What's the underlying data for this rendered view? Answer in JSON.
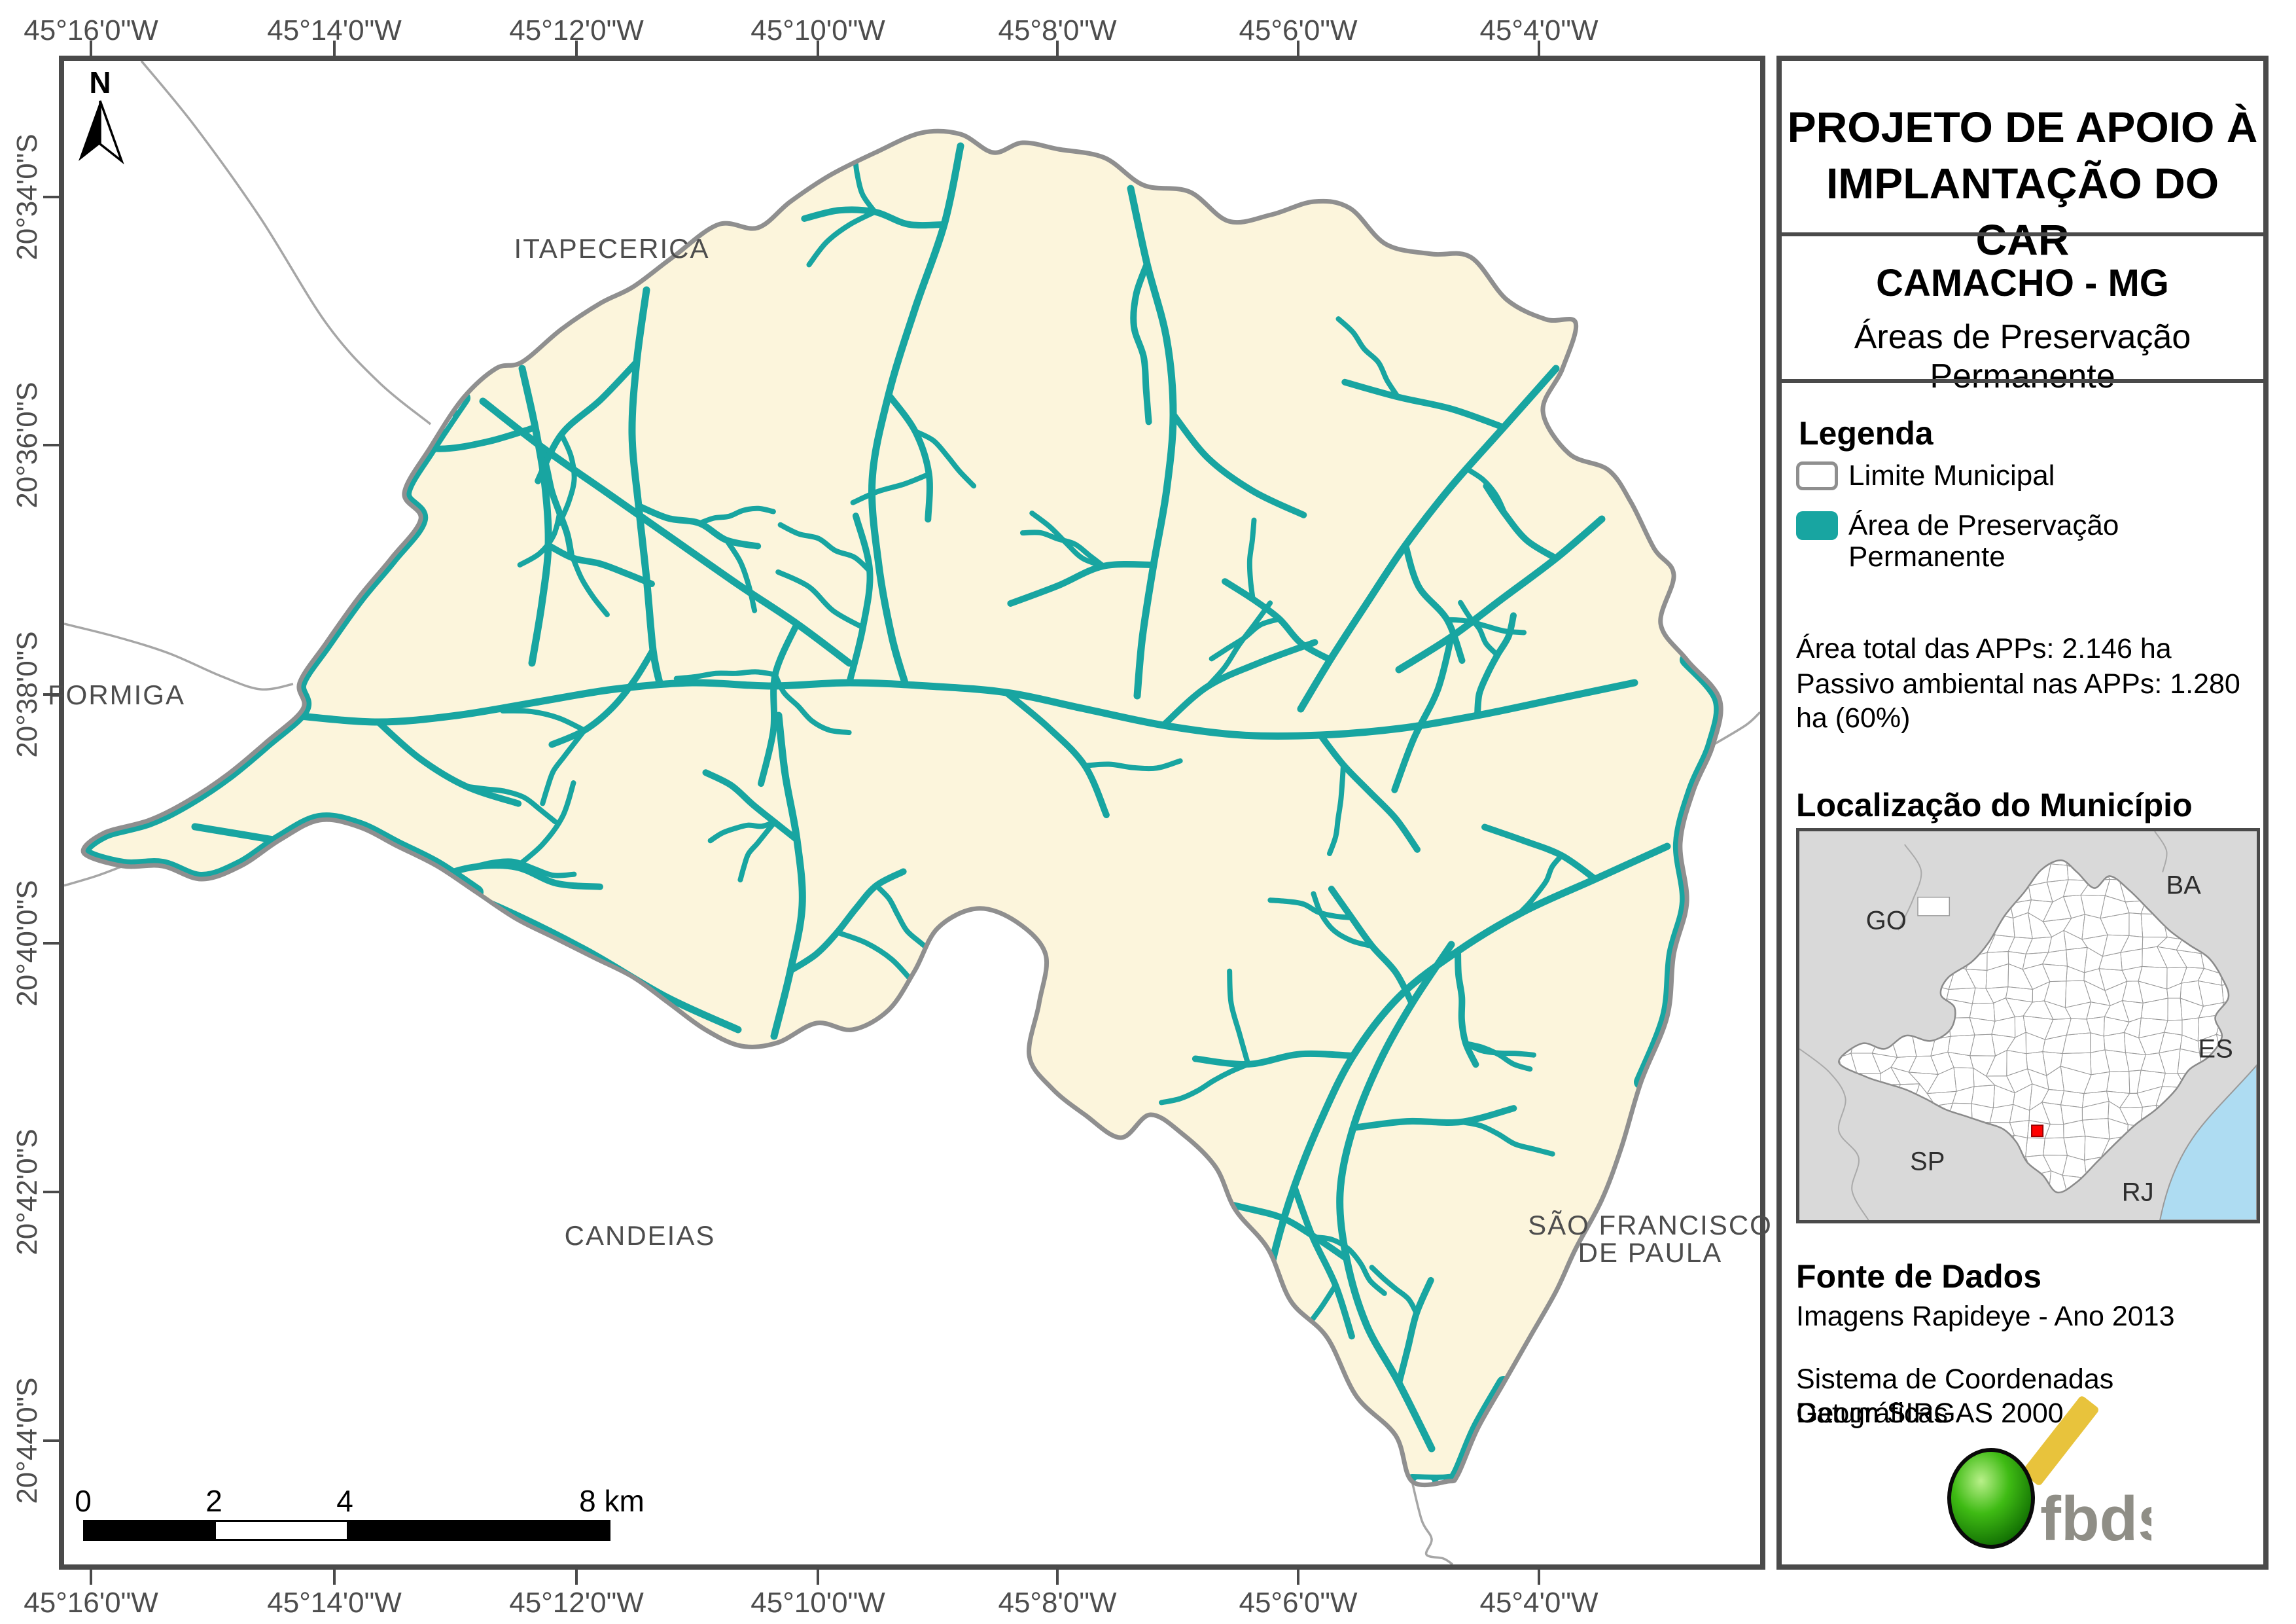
{
  "header": {
    "title_line1": "PROJETO DE APOIO À",
    "title_line2": "IMPLANTAÇÃO DO CAR",
    "municipality": "CAMACHO - MG",
    "subtitle": "Áreas de Preservação Permanente"
  },
  "legend": {
    "heading": "Legenda",
    "items": [
      {
        "label": "Limite Municipal",
        "swatch": "white-outline"
      },
      {
        "label": "Área de Preservação Permanente",
        "swatch": "teal"
      }
    ],
    "stats": [
      "Área total das APPs: 2.146 ha",
      "Passivo ambiental nas APPs: 1.280 ha (60%)"
    ]
  },
  "location": {
    "heading": "Localização do Município",
    "state_labels": [
      "GO",
      "BA",
      "ES",
      "SP",
      "RJ"
    ]
  },
  "source": {
    "heading": "Fonte de Dados",
    "lines": [
      "Imagens Rapideye - Ano 2013",
      "Sistema de Coordenadas Geográficas",
      "Datum SIRGAS 2000"
    ]
  },
  "logo": {
    "text": "fbds"
  },
  "map": {
    "north_label": "N",
    "labels": {
      "itapecerica": "ITAPECERICA",
      "formiga": "FORMIGA",
      "candeias": "CANDEIAS",
      "sao_francisco_line1": "SÃO FRANCISCO",
      "sao_francisco_line2": "DE PAULA"
    },
    "lon_coords": [
      "45°16'0\"W",
      "45°14'0\"W",
      "45°12'0\"W",
      "45°10'0\"W",
      "45°8'0\"W",
      "45°6'0\"W",
      "45°4'0\"W"
    ],
    "lat_coords": [
      "20°34'0\"S",
      "20°36'0\"S",
      "20°38'0\"S",
      "20°40'0\"S",
      "20°42'0\"S",
      "20°44'0\"S"
    ],
    "scalebar": {
      "labels": [
        "0",
        "2",
        "4",
        "8 km"
      ]
    }
  },
  "colors": {
    "frame": "#4A4A4A",
    "municipality_fill": "#FCF5DC",
    "municipality_border": "#8F8F8F",
    "app_teal": "#18A5A1",
    "neighbor_line": "#A6A6A6",
    "label_gray": "#4D4D4D",
    "inset_bg": "#D9D9D9",
    "inset_state_fill": "#FFFFFF",
    "ocean_blue": "#AEDCF2",
    "marker_red": "#FF0000",
    "logo_green": "#2EA50C",
    "logo_yellow": "#E8C33C",
    "logo_text_gray": "#8F8E86"
  }
}
